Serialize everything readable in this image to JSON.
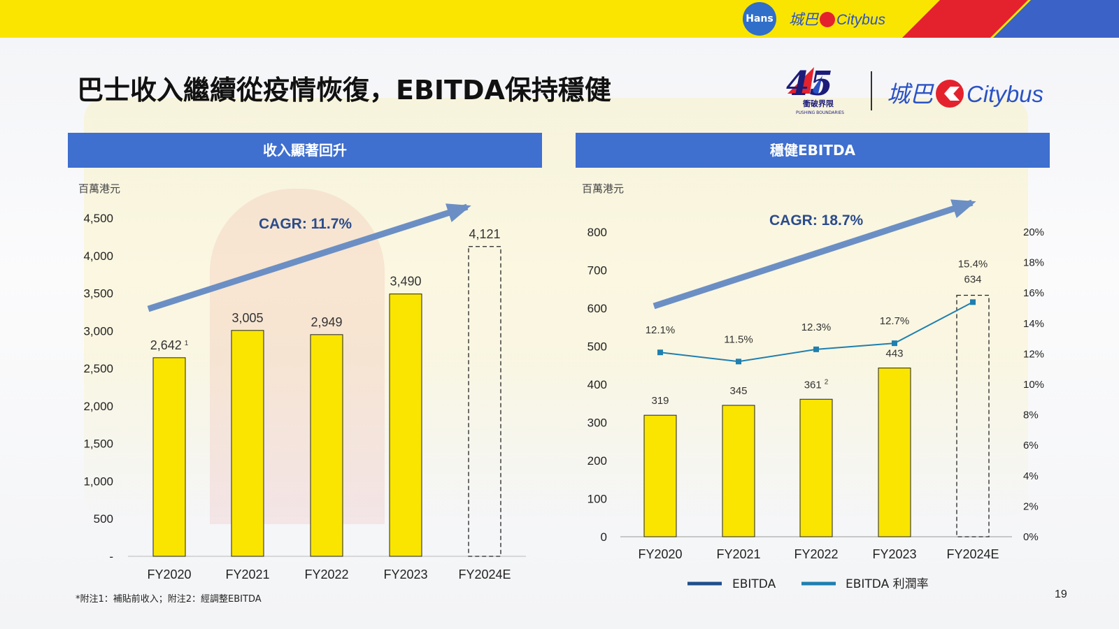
{
  "header": {
    "title": "巴士收入繼續從疫情恢復，EBITDA保持穩健",
    "top_logo_group": "Hans",
    "top_logo_cn": "城巴",
    "top_logo_en": "Citybus",
    "brand_logo_cn": "城巴",
    "brand_logo_en": "Citybus",
    "anniversary_number": "45",
    "anniversary_cn": "衝破界限",
    "anniversary_en": "PUSHING BOUNDARIES"
  },
  "colors": {
    "bar_fill": "#fae500",
    "bar_stroke": "#222222",
    "header_bg": "#3f6fcf",
    "arrow": "#6b8fc4",
    "cagr_text": "#2b4c8c",
    "margin_line": "#1f7fb0",
    "ebitda_legend": "#1f4e8c"
  },
  "footnote": "*附注1：補貼前收入；附注2：經調整EBITDA",
  "page_number": "19",
  "chart_data": [
    {
      "type": "bar",
      "panel_title": "收入顯著回升",
      "unit_label": "百萬港元",
      "categories": [
        "FY2020",
        "FY2021",
        "FY2022",
        "FY2023",
        "FY2024E"
      ],
      "values": [
        2642,
        3005,
        2949,
        3490,
        4121
      ],
      "value_labels": [
        "2,642",
        "3,005",
        "2,949",
        "3,490",
        "4,121"
      ],
      "value_label_superscripts": [
        "1",
        "",
        "",
        "",
        ""
      ],
      "estimate_index": 4,
      "ylim": [
        0,
        4500
      ],
      "y_ticks": [
        0,
        500,
        1000,
        1500,
        2000,
        2500,
        3000,
        3500,
        4000,
        4500
      ],
      "y_tick_labels": [
        "-",
        "500",
        "1,000",
        "1,500",
        "2,000",
        "2,500",
        "3,000",
        "3,500",
        "4,000",
        "4,500"
      ],
      "annotation": "CAGR: 11.7%",
      "grid": false
    },
    {
      "type": "bar",
      "panel_title": "穩健EBITDA",
      "unit_label": "百萬港元",
      "categories": [
        "FY2020",
        "FY2021",
        "FY2022",
        "FY2023",
        "FY2024E"
      ],
      "series": [
        {
          "name": "EBITDA",
          "type": "bar",
          "values": [
            319,
            345,
            361,
            443,
            634
          ],
          "value_labels": [
            "319",
            "345",
            "361",
            "443",
            "634"
          ],
          "value_label_superscripts": [
            "",
            "",
            "2",
            "",
            ""
          ]
        },
        {
          "name": "EBITDA 利潤率",
          "type": "line",
          "axis": "right",
          "values": [
            12.1,
            11.5,
            12.3,
            12.7,
            15.4
          ],
          "value_labels": [
            "12.1%",
            "11.5%",
            "12.3%",
            "12.7%",
            "15.4%"
          ]
        }
      ],
      "estimate_index": 4,
      "ylim": [
        0,
        800
      ],
      "y_ticks": [
        0,
        100,
        200,
        300,
        400,
        500,
        600,
        700,
        800
      ],
      "y_tick_labels": [
        "0",
        "100",
        "200",
        "300",
        "400",
        "500",
        "600",
        "700",
        "800"
      ],
      "y2lim": [
        0,
        20
      ],
      "y2_ticks": [
        0,
        2,
        4,
        6,
        8,
        10,
        12,
        14,
        16,
        18,
        20
      ],
      "y2_tick_labels": [
        "0%",
        "2%",
        "4%",
        "6%",
        "8%",
        "10%",
        "12%",
        "14%",
        "16%",
        "18%",
        "20%"
      ],
      "annotation": "CAGR: 18.7%",
      "legend_position": "bottom",
      "grid": false
    }
  ]
}
